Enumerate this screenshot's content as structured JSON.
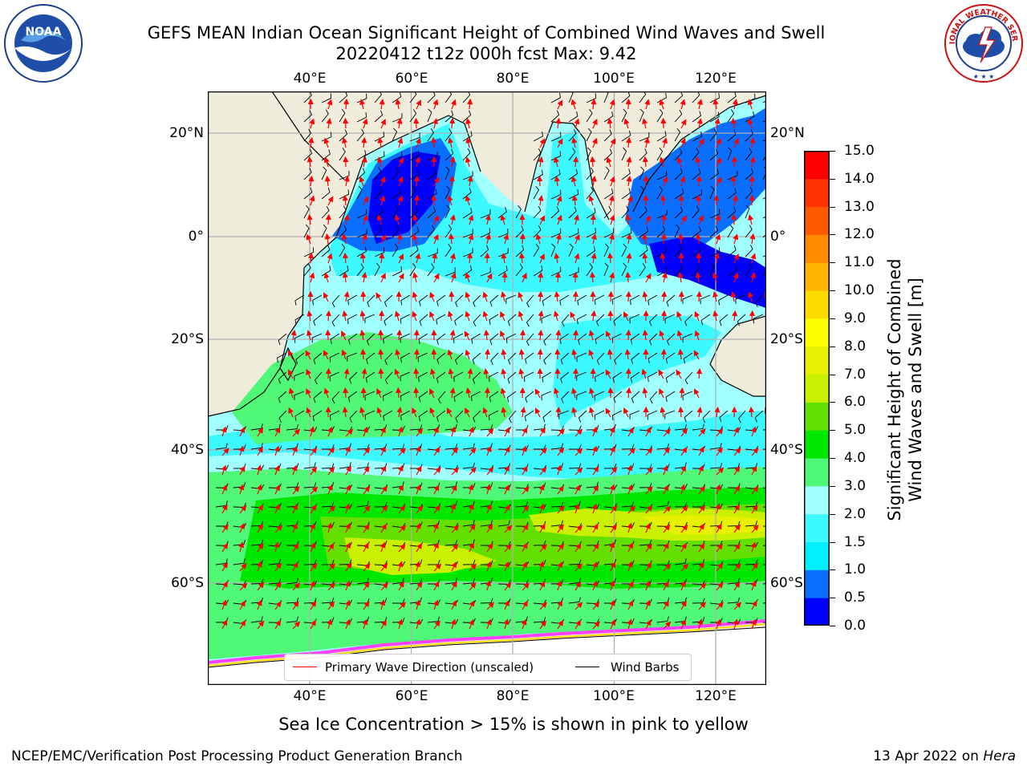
{
  "title": {
    "line1": "GEFS MEAN Indian Ocean Significant Height of Combined Wind Waves and Swell",
    "line2": "20220412 t12z 000h fcst   Max: 9.42"
  },
  "logos": {
    "left": {
      "name": "noaa-logo",
      "text": "NOAA",
      "ring_text": "NATIONAL OCEANIC AND ATMOSPHERIC ADMINISTRATION · U.S. DEPARTMENT OF COMMERCE"
    },
    "right": {
      "name": "national-weather-service-logo",
      "ring_text": "NATIONAL WEATHER SERVICE"
    }
  },
  "map": {
    "lon_labels": [
      "40°E",
      "60°E",
      "80°E",
      "100°E",
      "120°E"
    ],
    "lon_values": [
      40,
      60,
      80,
      100,
      120
    ],
    "lat_labels": [
      "20°N",
      "0°",
      "20°S",
      "40°S",
      "60°S"
    ],
    "lat_values": [
      20,
      0,
      -20,
      -40,
      -60
    ],
    "lon_range": [
      20,
      130
    ],
    "lat_range": [
      -75,
      28
    ],
    "gridlines": true,
    "land_color": "#efecdc",
    "barb_color": "#000000",
    "arrow_color": "#ff0000"
  },
  "legend": {
    "wave_label": "Primary Wave Direction (unscaled)",
    "wind_label": "Wind Barbs",
    "wave_color": "#ff0000",
    "wind_color": "#000000"
  },
  "colorbar": {
    "label_line1": "Significant Height of Combined",
    "label_line2": "Wind Waves and Swell [m]",
    "ticks": [
      "0.0",
      "0.5",
      "1.0",
      "1.5",
      "2.0",
      "3.0",
      "4.0",
      "5.0",
      "6.0",
      "7.0",
      "8.0",
      "9.0",
      "10.0",
      "11.0",
      "12.0",
      "13.0",
      "14.0",
      "15.0"
    ],
    "colors": [
      "#0000ff",
      "#0a6eff",
      "#00f0ff",
      "#3cf8ff",
      "#a0ffff",
      "#50f878",
      "#00e800",
      "#64e000",
      "#c8f000",
      "#e6f000",
      "#ffff00",
      "#ffdc00",
      "#ffb400",
      "#ff8c00",
      "#ff5a00",
      "#ff3200",
      "#ff0000"
    ]
  },
  "footer": {
    "note": "Sea Ice Concentration > 15% is shown in pink to yellow",
    "left": "NCEP/EMC/Verification Post Processing Product Generation Branch",
    "right_prefix": "13 Apr 2022 on ",
    "right_host": "Hera"
  }
}
